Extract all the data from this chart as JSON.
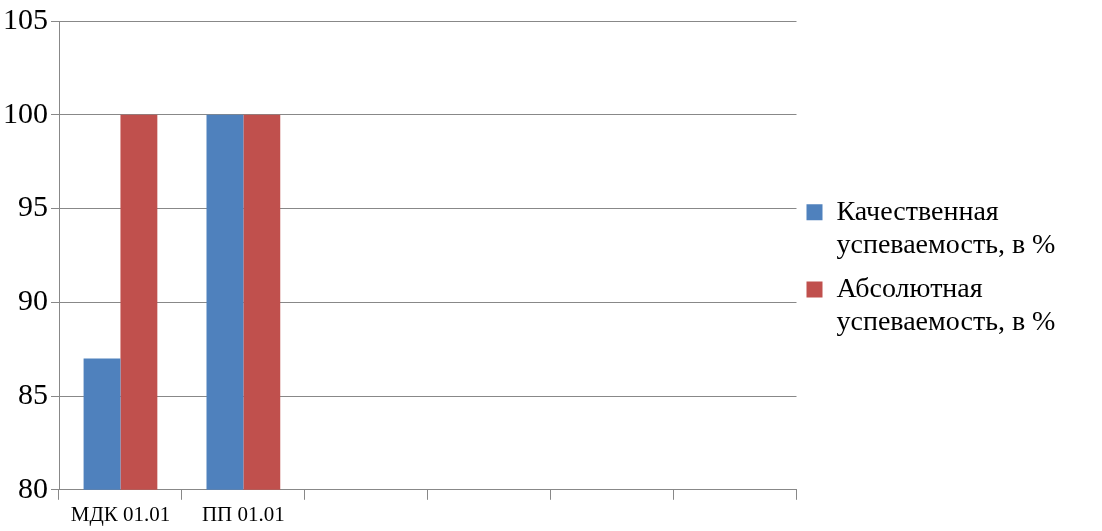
{
  "chart_data": {
    "type": "bar",
    "categories": [
      "МДК 01.01",
      "ПП 01.01",
      null,
      null,
      null,
      null
    ],
    "series": [
      {
        "name": "Качественная успеваемость, в %",
        "color": "#4f81bd",
        "values": [
          87,
          100,
          null,
          null,
          null,
          null
        ]
      },
      {
        "name": "Абсолютная успеваемость, в %",
        "color": "#c0504d",
        "values": [
          100,
          100,
          null,
          null,
          null,
          null
        ]
      }
    ],
    "ylim": [
      80,
      105
    ],
    "yticks": [
      80,
      85,
      90,
      95,
      100,
      105
    ],
    "grid": "y",
    "legend": "right"
  }
}
